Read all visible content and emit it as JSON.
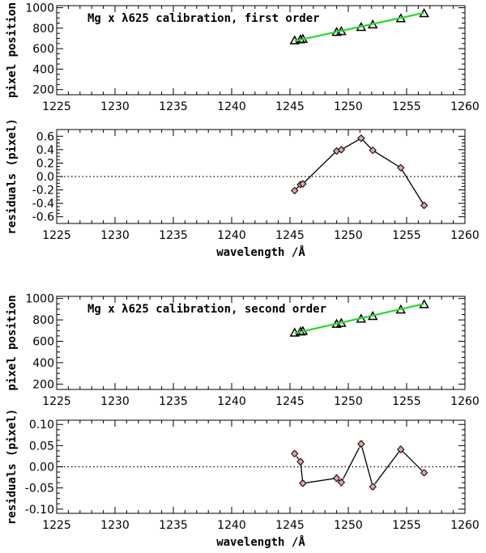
{
  "chart_data": [
    {
      "type": "scatter",
      "panel": "position-first",
      "title": "Mg x λ625 calibration, first order",
      "xlabel": "",
      "ylabel": "pixel position",
      "xlim": [
        1225,
        1260
      ],
      "ylim": [
        150,
        1020
      ],
      "xticks": [
        1225,
        1230,
        1235,
        1240,
        1245,
        1250,
        1255,
        1260
      ],
      "yticks": [
        200,
        400,
        600,
        800,
        1000
      ],
      "series": [
        {
          "name": "lines",
          "marker": "triangle",
          "x": [
            1245.4,
            1245.9,
            1246.1,
            1249.0,
            1249.4,
            1251.1,
            1252.1,
            1254.5,
            1256.5
          ],
          "y": [
            680,
            690,
            695,
            762,
            770,
            810,
            835,
            895,
            945
          ]
        },
        {
          "name": "fit",
          "color": "#22dd22",
          "x": [
            1245.4,
            1256.5
          ],
          "y": [
            675,
            950
          ]
        }
      ]
    },
    {
      "type": "line",
      "panel": "residual-first",
      "xlabel": "wavelength /Å",
      "ylabel": "residuals (pixel)",
      "xlim": [
        1225,
        1260
      ],
      "ylim": [
        -0.7,
        0.7
      ],
      "xticks": [
        1225,
        1230,
        1235,
        1240,
        1245,
        1250,
        1255,
        1260
      ],
      "yticks": [
        -0.6,
        -0.4,
        -0.2,
        0.0,
        0.2,
        0.4,
        0.6
      ],
      "ytick_labels": [
        "-0.6",
        "-0.4",
        "-0.2",
        "0.0",
        "0.2",
        "0.4",
        "0.6"
      ],
      "zero_line": true,
      "series": [
        {
          "name": "residuals",
          "marker": "diamond",
          "x": [
            1245.4,
            1245.9,
            1246.1,
            1249.0,
            1249.4,
            1251.1,
            1252.1,
            1254.5,
            1256.5
          ],
          "y": [
            -0.21,
            -0.12,
            -0.11,
            0.38,
            0.4,
            0.57,
            0.39,
            0.13,
            -0.43
          ]
        }
      ]
    },
    {
      "type": "scatter",
      "panel": "position-second",
      "title": "Mg x λ625 calibration, second order",
      "xlabel": "",
      "ylabel": "pixel position",
      "xlim": [
        1225,
        1260
      ],
      "ylim": [
        150,
        1020
      ],
      "xticks": [
        1225,
        1230,
        1235,
        1240,
        1245,
        1250,
        1255,
        1260
      ],
      "yticks": [
        200,
        400,
        600,
        800,
        1000
      ],
      "series": [
        {
          "name": "lines",
          "marker": "triangle",
          "x": [
            1245.4,
            1245.9,
            1246.1,
            1249.0,
            1249.4,
            1251.1,
            1252.1,
            1254.5,
            1256.5
          ],
          "y": [
            680,
            690,
            695,
            762,
            770,
            810,
            835,
            895,
            945
          ]
        },
        {
          "name": "fit",
          "color": "#22dd22",
          "x": [
            1245.4,
            1256.5
          ],
          "y": [
            675,
            950
          ]
        }
      ]
    },
    {
      "type": "line",
      "panel": "residual-second",
      "xlabel": "wavelength /Å",
      "ylabel": "residuals (pixel)",
      "xlim": [
        1225,
        1260
      ],
      "ylim": [
        -0.11,
        0.11
      ],
      "xticks": [
        1225,
        1230,
        1235,
        1240,
        1245,
        1250,
        1255,
        1260
      ],
      "yticks": [
        -0.1,
        -0.05,
        0.0,
        0.05,
        0.1
      ],
      "ytick_labels": [
        "-0.10",
        "-0.05",
        "0.00",
        "0.05",
        "0.10"
      ],
      "zero_line": true,
      "error_color": "#ff9999",
      "series": [
        {
          "name": "residuals",
          "marker": "diamond",
          "x": [
            1245.4,
            1245.9,
            1246.1,
            1249.0,
            1249.4,
            1251.1,
            1252.1,
            1254.5,
            1256.5
          ],
          "y": [
            0.031,
            0.012,
            -0.039,
            -0.027,
            -0.037,
            0.054,
            -0.047,
            0.041,
            -0.014
          ],
          "err": [
            0.006,
            0.006,
            0.006,
            0.009,
            0.009,
            0.008,
            0.007,
            0.008,
            0.005
          ]
        }
      ]
    }
  ]
}
